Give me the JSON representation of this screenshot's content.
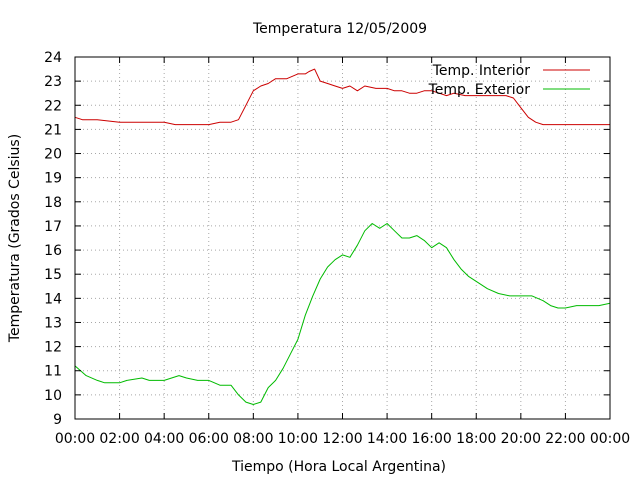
{
  "chart_data": {
    "type": "line",
    "title": "Temperatura 12/05/2009",
    "xlabel": "Tiempo (Hora Local Argentina)",
    "ylabel": "Temperatura (Grados Celsius)",
    "xlim": [
      "00:00",
      "24:00"
    ],
    "ylim": [
      9,
      24
    ],
    "x_ticks": [
      "00:00",
      "02:00",
      "04:00",
      "06:00",
      "08:00",
      "10:00",
      "12:00",
      "14:00",
      "16:00",
      "18:00",
      "20:00",
      "22:00",
      "00:00"
    ],
    "y_ticks": [
      "9",
      "10",
      "11",
      "12",
      "13",
      "14",
      "15",
      "16",
      "17",
      "18",
      "19",
      "20",
      "21",
      "22",
      "23",
      "24"
    ],
    "grid": true,
    "legend_position": "top-right",
    "series": [
      {
        "name": "Temp. Interior",
        "color": "#cc0000",
        "x": [
          "00:00",
          "00:20",
          "01:00",
          "02:00",
          "03:00",
          "04:00",
          "04:30",
          "05:00",
          "06:00",
          "06:30",
          "07:00",
          "07:20",
          "07:40",
          "08:00",
          "08:20",
          "08:40",
          "09:00",
          "09:30",
          "10:00",
          "10:20",
          "10:30",
          "10:45",
          "11:00",
          "11:20",
          "11:40",
          "12:00",
          "12:20",
          "12:40",
          "13:00",
          "13:30",
          "14:00",
          "14:20",
          "14:40",
          "15:00",
          "15:20",
          "15:40",
          "16:00",
          "16:20",
          "16:40",
          "17:00",
          "17:30",
          "18:00",
          "18:30",
          "19:00",
          "19:20",
          "19:40",
          "20:00",
          "20:20",
          "20:40",
          "21:00",
          "22:00",
          "23:00",
          "24:00"
        ],
        "y": [
          21.5,
          21.4,
          21.4,
          21.3,
          21.3,
          21.3,
          21.2,
          21.2,
          21.2,
          21.3,
          21.3,
          21.4,
          22.0,
          22.6,
          22.8,
          22.9,
          23.1,
          23.1,
          23.3,
          23.3,
          23.4,
          23.5,
          23.0,
          22.9,
          22.8,
          22.7,
          22.8,
          22.6,
          22.8,
          22.7,
          22.7,
          22.6,
          22.6,
          22.5,
          22.5,
          22.6,
          22.6,
          22.5,
          22.4,
          22.5,
          22.4,
          22.4,
          22.4,
          22.4,
          22.4,
          22.3,
          21.9,
          21.5,
          21.3,
          21.2,
          21.2,
          21.2,
          21.2
        ]
      },
      {
        "name": "Temp. Exterior",
        "color": "#00bb00",
        "x": [
          "00:00",
          "00:15",
          "00:30",
          "01:00",
          "01:20",
          "02:00",
          "02:20",
          "03:00",
          "03:20",
          "04:00",
          "04:20",
          "04:40",
          "05:00",
          "05:30",
          "06:00",
          "06:30",
          "07:00",
          "07:20",
          "07:40",
          "08:00",
          "08:20",
          "08:40",
          "09:00",
          "09:20",
          "09:40",
          "10:00",
          "10:20",
          "10:40",
          "11:00",
          "11:20",
          "11:40",
          "12:00",
          "12:20",
          "12:40",
          "13:00",
          "13:20",
          "13:40",
          "14:00",
          "14:20",
          "14:40",
          "15:00",
          "15:20",
          "15:40",
          "16:00",
          "16:20",
          "16:40",
          "17:00",
          "17:20",
          "17:40",
          "18:00",
          "18:30",
          "19:00",
          "19:30",
          "20:00",
          "20:30",
          "21:00",
          "21:20",
          "21:40",
          "22:00",
          "22:30",
          "23:00",
          "23:30",
          "24:00"
        ],
        "y": [
          11.2,
          11.0,
          10.8,
          10.6,
          10.5,
          10.5,
          10.6,
          10.7,
          10.6,
          10.6,
          10.7,
          10.8,
          10.7,
          10.6,
          10.6,
          10.4,
          10.4,
          10.0,
          9.7,
          9.6,
          9.7,
          10.3,
          10.6,
          11.1,
          11.7,
          12.3,
          13.3,
          14.1,
          14.8,
          15.3,
          15.6,
          15.8,
          15.7,
          16.2,
          16.8,
          17.1,
          16.9,
          17.1,
          16.8,
          16.5,
          16.5,
          16.6,
          16.4,
          16.1,
          16.3,
          16.1,
          15.6,
          15.2,
          14.9,
          14.7,
          14.4,
          14.2,
          14.1,
          14.1,
          14.1,
          13.9,
          13.7,
          13.6,
          13.6,
          13.7,
          13.7,
          13.7,
          13.8
        ]
      }
    ]
  }
}
